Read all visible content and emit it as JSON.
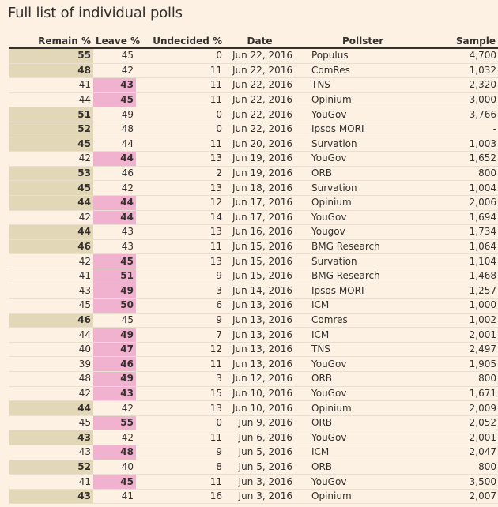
{
  "title": "Full list of individual polls",
  "columns": [
    "Remain %",
    "Leave %",
    "Undecided %",
    "Date",
    "Pollster",
    "Sample"
  ],
  "highlight_colors": {
    "remain": "#e2d8b8",
    "leave": "#f1b2cf"
  },
  "rows": [
    {
      "remain": "55",
      "leave": "45",
      "undecided": "0",
      "date": "Jun 22, 2016",
      "pollster": "Populus",
      "sample": "4,700",
      "lead": "remain"
    },
    {
      "remain": "48",
      "leave": "42",
      "undecided": "11",
      "date": "Jun 22, 2016",
      "pollster": "ComRes",
      "sample": "1,032",
      "lead": "remain"
    },
    {
      "remain": "41",
      "leave": "43",
      "undecided": "11",
      "date": "Jun 22, 2016",
      "pollster": "TNS",
      "sample": "2,320",
      "lead": "leave"
    },
    {
      "remain": "44",
      "leave": "45",
      "undecided": "11",
      "date": "Jun 22, 2016",
      "pollster": "Opinium",
      "sample": "3,000",
      "lead": "leave"
    },
    {
      "remain": "51",
      "leave": "49",
      "undecided": "0",
      "date": "Jun 22, 2016",
      "pollster": "YouGov",
      "sample": "3,766",
      "lead": "remain"
    },
    {
      "remain": "52",
      "leave": "48",
      "undecided": "0",
      "date": "Jun 22, 2016",
      "pollster": "Ipsos MORI",
      "sample": "-",
      "lead": "remain"
    },
    {
      "remain": "45",
      "leave": "44",
      "undecided": "11",
      "date": "Jun 20, 2016",
      "pollster": "Survation",
      "sample": "1,003",
      "lead": "remain"
    },
    {
      "remain": "42",
      "leave": "44",
      "undecided": "13",
      "date": "Jun 19, 2016",
      "pollster": "YouGov",
      "sample": "1,652",
      "lead": "leave"
    },
    {
      "remain": "53",
      "leave": "46",
      "undecided": "2",
      "date": "Jun 19, 2016",
      "pollster": "ORB",
      "sample": "800",
      "lead": "remain"
    },
    {
      "remain": "45",
      "leave": "42",
      "undecided": "13",
      "date": "Jun 18, 2016",
      "pollster": "Survation",
      "sample": "1,004",
      "lead": "remain"
    },
    {
      "remain": "44",
      "leave": "44",
      "undecided": "12",
      "date": "Jun 17, 2016",
      "pollster": "Opinium",
      "sample": "2,006",
      "lead": "tie"
    },
    {
      "remain": "42",
      "leave": "44",
      "undecided": "14",
      "date": "Jun 17, 2016",
      "pollster": "YouGov",
      "sample": "1,694",
      "lead": "leave"
    },
    {
      "remain": "44",
      "leave": "43",
      "undecided": "13",
      "date": "Jun 16, 2016",
      "pollster": "Yougov",
      "sample": "1,734",
      "lead": "remain"
    },
    {
      "remain": "46",
      "leave": "43",
      "undecided": "11",
      "date": "Jun 15, 2016",
      "pollster": "BMG Research",
      "sample": "1,064",
      "lead": "remain"
    },
    {
      "remain": "42",
      "leave": "45",
      "undecided": "13",
      "date": "Jun 15, 2016",
      "pollster": "Survation",
      "sample": "1,104",
      "lead": "leave"
    },
    {
      "remain": "41",
      "leave": "51",
      "undecided": "9",
      "date": "Jun 15, 2016",
      "pollster": "BMG Research",
      "sample": "1,468",
      "lead": "leave"
    },
    {
      "remain": "43",
      "leave": "49",
      "undecided": "3",
      "date": "Jun 14, 2016",
      "pollster": "Ipsos MORI",
      "sample": "1,257",
      "lead": "leave"
    },
    {
      "remain": "45",
      "leave": "50",
      "undecided": "6",
      "date": "Jun 13, 2016",
      "pollster": "ICM",
      "sample": "1,000",
      "lead": "leave"
    },
    {
      "remain": "46",
      "leave": "45",
      "undecided": "9",
      "date": "Jun 13, 2016",
      "pollster": "Comres",
      "sample": "1,002",
      "lead": "remain"
    },
    {
      "remain": "44",
      "leave": "49",
      "undecided": "7",
      "date": "Jun 13, 2016",
      "pollster": "ICM",
      "sample": "2,001",
      "lead": "leave"
    },
    {
      "remain": "40",
      "leave": "47",
      "undecided": "12",
      "date": "Jun 13, 2016",
      "pollster": "TNS",
      "sample": "2,497",
      "lead": "leave"
    },
    {
      "remain": "39",
      "leave": "46",
      "undecided": "11",
      "date": "Jun 13, 2016",
      "pollster": "YouGov",
      "sample": "1,905",
      "lead": "leave"
    },
    {
      "remain": "48",
      "leave": "49",
      "undecided": "3",
      "date": "Jun 12, 2016",
      "pollster": "ORB",
      "sample": "800",
      "lead": "leave"
    },
    {
      "remain": "42",
      "leave": "43",
      "undecided": "15",
      "date": "Jun 10, 2016",
      "pollster": "YouGov",
      "sample": "1,671",
      "lead": "leave"
    },
    {
      "remain": "44",
      "leave": "42",
      "undecided": "13",
      "date": "Jun 10, 2016",
      "pollster": "Opinium",
      "sample": "2,009",
      "lead": "remain"
    },
    {
      "remain": "45",
      "leave": "55",
      "undecided": "0",
      "date": "Jun 9, 2016",
      "pollster": "ORB",
      "sample": "2,052",
      "lead": "leave"
    },
    {
      "remain": "43",
      "leave": "42",
      "undecided": "11",
      "date": "Jun 6, 2016",
      "pollster": "YouGov",
      "sample": "2,001",
      "lead": "remain"
    },
    {
      "remain": "43",
      "leave": "48",
      "undecided": "9",
      "date": "Jun 5, 2016",
      "pollster": "ICM",
      "sample": "2,047",
      "lead": "leave"
    },
    {
      "remain": "52",
      "leave": "40",
      "undecided": "8",
      "date": "Jun 5, 2016",
      "pollster": "ORB",
      "sample": "800",
      "lead": "remain"
    },
    {
      "remain": "41",
      "leave": "45",
      "undecided": "11",
      "date": "Jun 3, 2016",
      "pollster": "YouGov",
      "sample": "3,500",
      "lead": "leave"
    },
    {
      "remain": "43",
      "leave": "41",
      "undecided": "16",
      "date": "Jun 3, 2016",
      "pollster": "Opinium",
      "sample": "2,007",
      "lead": "remain"
    }
  ]
}
